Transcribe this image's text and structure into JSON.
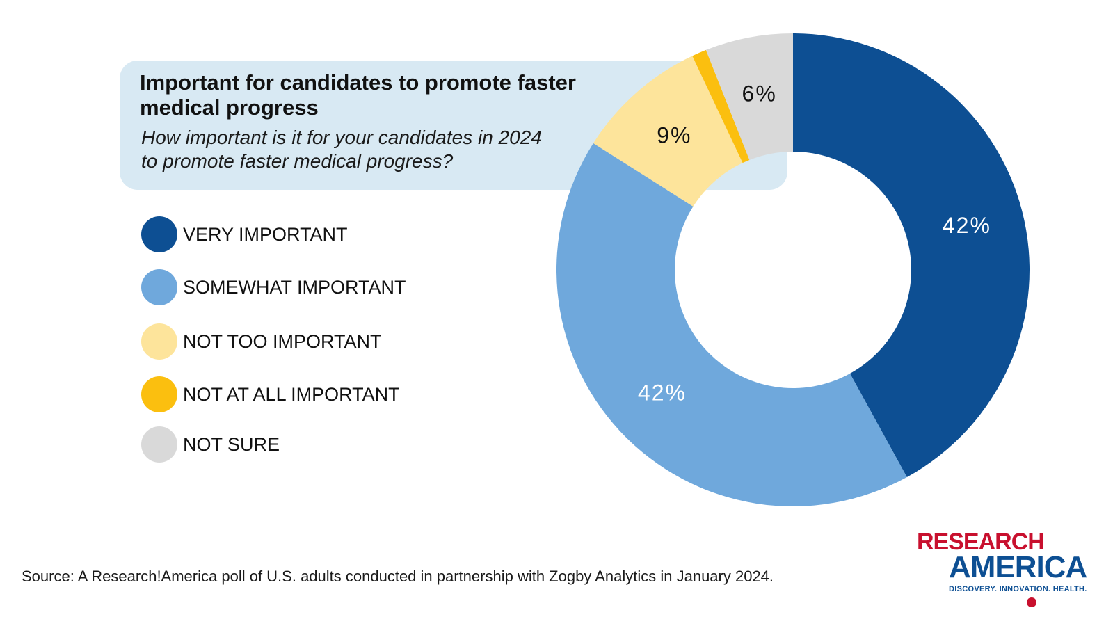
{
  "title": "Important for candidates to promote faster medical progress",
  "subtitle": "How important is it for your candidates in 2024 to promote faster medical progress?",
  "source": "Source:  A Research!America poll of U.S. adults conducted in partnership with Zogby Analytics in January 2024.",
  "logo": {
    "line1": "RESEARCH",
    "line2": "AMERICA",
    "tagline": "DISCOVERY. INNOVATION. HEALTH."
  },
  "colors": {
    "very_important": "#0d4f93",
    "somewhat_important": "#6fa8dc",
    "not_too_important": "#fde49b",
    "not_at_all_important": "#fbbf0f",
    "not_sure": "#d9d9d9",
    "title_box": "#d8e9f3",
    "brand_red": "#c8102e"
  },
  "legend": [
    {
      "label": "VERY IMPORTANT",
      "color": "#0d4f93"
    },
    {
      "label": "SOMEWHAT IMPORTANT",
      "color": "#6fa8dc"
    },
    {
      "label": "NOT TOO IMPORTANT",
      "color": "#fde49b"
    },
    {
      "label": "NOT AT ALL IMPORTANT",
      "color": "#fbbf0f"
    },
    {
      "label": "NOT SURE",
      "color": "#d9d9d9"
    }
  ],
  "chart_data": {
    "type": "pie",
    "variant": "donut",
    "title": "Important for candidates to promote faster medical progress",
    "categories": [
      "VERY IMPORTANT",
      "SOMEWHAT IMPORTANT",
      "NOT TOO IMPORTANT",
      "NOT AT ALL IMPORTANT",
      "NOT SURE"
    ],
    "values": [
      42,
      42,
      9,
      1,
      6
    ],
    "data_labels": [
      "42%",
      "42%",
      "9%",
      "",
      "6%"
    ],
    "colors": [
      "#0d4f93",
      "#6fa8dc",
      "#fde49b",
      "#fbbf0f",
      "#d9d9d9"
    ],
    "label_colors": [
      "#ffffff",
      "#ffffff",
      "#111111",
      "#111111",
      "#111111"
    ],
    "start": "12 o'clock",
    "direction": "clockwise",
    "legend_position": "left"
  }
}
